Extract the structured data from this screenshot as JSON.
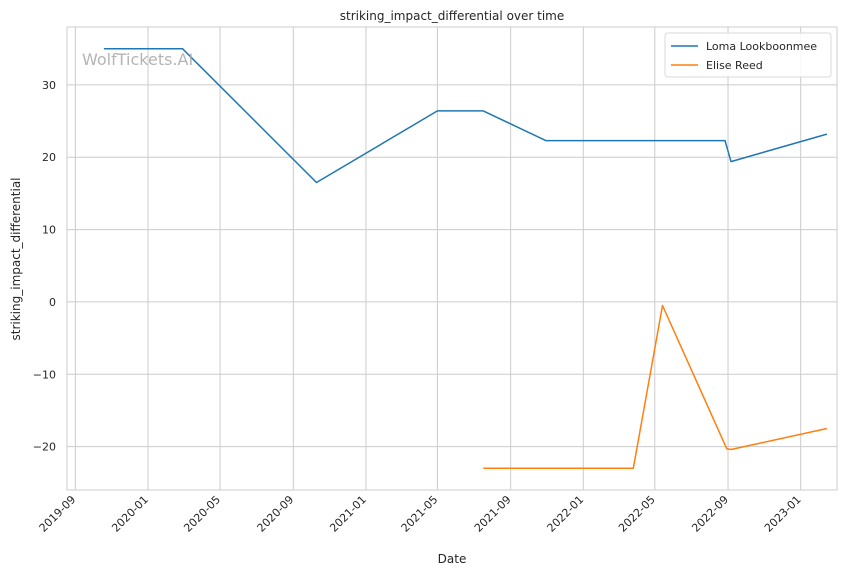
{
  "chart_data": {
    "type": "line",
    "title": "striking_impact_differential over time",
    "xlabel": "Date",
    "ylabel": "striking_impact_differential",
    "watermark": "WolfTickets.AI",
    "xlim": [
      "2019-08-18",
      "2023-03-03"
    ],
    "ylim": [
      -26,
      38
    ],
    "x_ticks": [
      "2019-09-01",
      "2020-01-01",
      "2020-05-01",
      "2020-09-01",
      "2021-01-01",
      "2021-05-01",
      "2021-09-01",
      "2022-01-01",
      "2022-05-01",
      "2022-09-01",
      "2023-01-01"
    ],
    "x_tick_labels": [
      "2019-09",
      "2020-01",
      "2020-05",
      "2020-09",
      "2021-01",
      "2021-05",
      "2021-09",
      "2022-01",
      "2022-05",
      "2022-09",
      "2023-01"
    ],
    "y_ticks": [
      -20,
      -10,
      0,
      10,
      20,
      30
    ],
    "y_tick_labels": [
      "−20",
      "−10",
      "0",
      "10",
      "20",
      "30"
    ],
    "grid": true,
    "legend_position": "top-right",
    "series": [
      {
        "name": "Loma Lookboonmee",
        "color": "#1f77b4",
        "points": [
          {
            "x": "2019-10-19",
            "y": 35.0
          },
          {
            "x": "2020-02-28",
            "y": 35.0
          },
          {
            "x": "2020-10-10",
            "y": 16.5
          },
          {
            "x": "2021-05-01",
            "y": 26.4
          },
          {
            "x": "2021-07-17",
            "y": 26.4
          },
          {
            "x": "2021-10-30",
            "y": 22.3
          },
          {
            "x": "2022-08-27",
            "y": 22.3
          },
          {
            "x": "2022-09-06",
            "y": 19.4
          },
          {
            "x": "2023-02-14",
            "y": 23.2
          }
        ]
      },
      {
        "name": "Elise Reed",
        "color": "#ff7f0e",
        "points": [
          {
            "x": "2021-07-17",
            "y": -23.0
          },
          {
            "x": "2022-03-26",
            "y": -23.0
          },
          {
            "x": "2022-05-14",
            "y": -0.5
          },
          {
            "x": "2022-08-30",
            "y": -20.3
          },
          {
            "x": "2022-09-06",
            "y": -20.4
          },
          {
            "x": "2023-02-14",
            "y": -17.5
          }
        ]
      }
    ]
  }
}
